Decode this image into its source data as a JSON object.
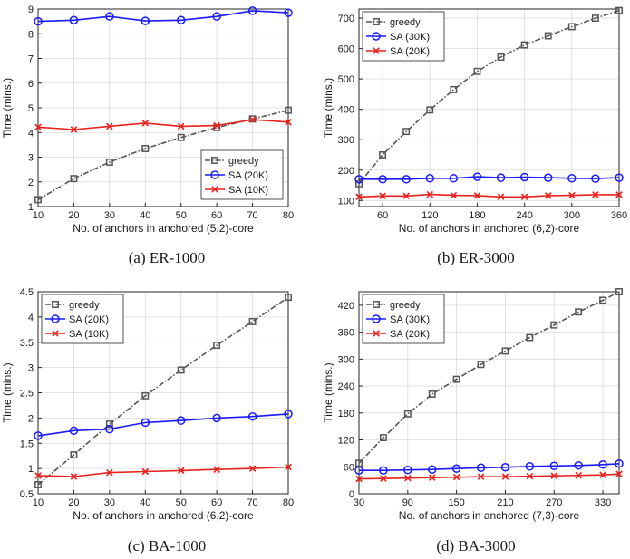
{
  "colors": {
    "greedy": "#555555",
    "sa_high": "#1a1aff",
    "sa_low": "#e8221c"
  },
  "panels": [
    {
      "caption": "(a) ER-1000"
    },
    {
      "caption": "(b) ER-3000"
    },
    {
      "caption": "(c) BA-1000"
    },
    {
      "caption": "(d) BA-3000"
    }
  ],
  "chart_data": [
    {
      "type": "line",
      "title": "",
      "xlabel": "No. of anchors in anchored (5,2)-core",
      "ylabel": "Time (mins.)",
      "xlim": [
        10,
        80
      ],
      "ylim": [
        1,
        9
      ],
      "xticks": [
        10,
        20,
        30,
        40,
        50,
        60,
        70,
        80
      ],
      "yticks": [
        1,
        2,
        3,
        4,
        5,
        6,
        7,
        8,
        9
      ],
      "grid": true,
      "legend_position": "bottom-right",
      "x": [
        10,
        20,
        30,
        40,
        50,
        60,
        70,
        80
      ],
      "series": [
        {
          "name": "greedy",
          "style": "greedy",
          "values": [
            1.28,
            2.13,
            2.8,
            3.35,
            3.8,
            4.2,
            4.55,
            4.9
          ]
        },
        {
          "name": "SA (20K)",
          "style": "sa_high",
          "values": [
            8.5,
            8.55,
            8.7,
            8.52,
            8.55,
            8.7,
            8.93,
            8.85
          ]
        },
        {
          "name": "SA (10K)",
          "style": "sa_low",
          "values": [
            4.22,
            4.12,
            4.25,
            4.38,
            4.25,
            4.28,
            4.52,
            4.42
          ]
        }
      ]
    },
    {
      "type": "line",
      "title": "",
      "xlabel": "No. of anchors in anchored (6,2)-core",
      "ylabel": "Time (mins.)",
      "xlim": [
        30,
        360
      ],
      "ylim": [
        80,
        730
      ],
      "xticks": [
        60,
        120,
        180,
        240,
        300,
        360
      ],
      "yticks": [
        100,
        200,
        300,
        400,
        500,
        600,
        700
      ],
      "grid": true,
      "legend_position": "top-left",
      "x": [
        30,
        60,
        90,
        120,
        150,
        180,
        210,
        240,
        270,
        300,
        330,
        360
      ],
      "series": [
        {
          "name": "greedy",
          "style": "greedy",
          "values": [
            155,
            250,
            327,
            398,
            465,
            525,
            572,
            612,
            642,
            672,
            700,
            725
          ]
        },
        {
          "name": "SA (30K)",
          "style": "sa_high",
          "values": [
            170,
            170,
            170,
            173,
            173,
            178,
            175,
            177,
            175,
            173,
            172,
            175
          ]
        },
        {
          "name": "SA (20K)",
          "style": "sa_low",
          "values": [
            112,
            115,
            115,
            120,
            117,
            116,
            112,
            112,
            116,
            117,
            119,
            119
          ]
        }
      ]
    },
    {
      "type": "line",
      "title": "",
      "xlabel": "No. of anchors in anchored (6,2)-core",
      "ylabel": "Time (mins.)",
      "xlim": [
        10,
        80
      ],
      "ylim": [
        0.5,
        4.5
      ],
      "xticks": [
        10,
        20,
        30,
        40,
        50,
        60,
        70,
        80
      ],
      "yticks": [
        0.5,
        1,
        1.5,
        2,
        2.5,
        3,
        3.5,
        4,
        4.5
      ],
      "grid": true,
      "legend_position": "top-left",
      "x": [
        10,
        20,
        30,
        40,
        50,
        60,
        70,
        80
      ],
      "series": [
        {
          "name": "greedy",
          "style": "greedy",
          "values": [
            0.68,
            1.27,
            1.88,
            2.44,
            2.95,
            3.44,
            3.91,
            4.39
          ]
        },
        {
          "name": "SA (20K)",
          "style": "sa_high",
          "values": [
            1.65,
            1.75,
            1.78,
            1.91,
            1.95,
            2.0,
            2.03,
            2.08
          ]
        },
        {
          "name": "SA (10K)",
          "style": "sa_low",
          "values": [
            0.86,
            0.84,
            0.92,
            0.94,
            0.96,
            0.98,
            1.0,
            1.03
          ]
        }
      ]
    },
    {
      "type": "line",
      "title": "",
      "xlabel": "No. of anchors in anchored (7,3)-core",
      "ylabel": "Time (mins.)",
      "xlim": [
        30,
        350
      ],
      "ylim": [
        0,
        450
      ],
      "xticks": [
        30,
        90,
        150,
        210,
        270,
        330
      ],
      "yticks": [
        0,
        60,
        120,
        180,
        240,
        300,
        360,
        420
      ],
      "grid": true,
      "legend_position": "top-left",
      "x": [
        30,
        60,
        90,
        120,
        150,
        180,
        210,
        240,
        270,
        300,
        330,
        350
      ],
      "series": [
        {
          "name": "greedy",
          "style": "greedy",
          "values": [
            68,
            125,
            178,
            222,
            255,
            288,
            318,
            348,
            376,
            405,
            431,
            450
          ]
        },
        {
          "name": "SA (30K)",
          "style": "sa_high",
          "values": [
            52,
            52,
            53,
            54,
            56,
            58,
            59,
            61,
            62,
            63,
            65,
            67
          ]
        },
        {
          "name": "SA (20K)",
          "style": "sa_low",
          "values": [
            33,
            34,
            35,
            36,
            37,
            38,
            38,
            39,
            40,
            41,
            42,
            44
          ]
        }
      ]
    }
  ]
}
